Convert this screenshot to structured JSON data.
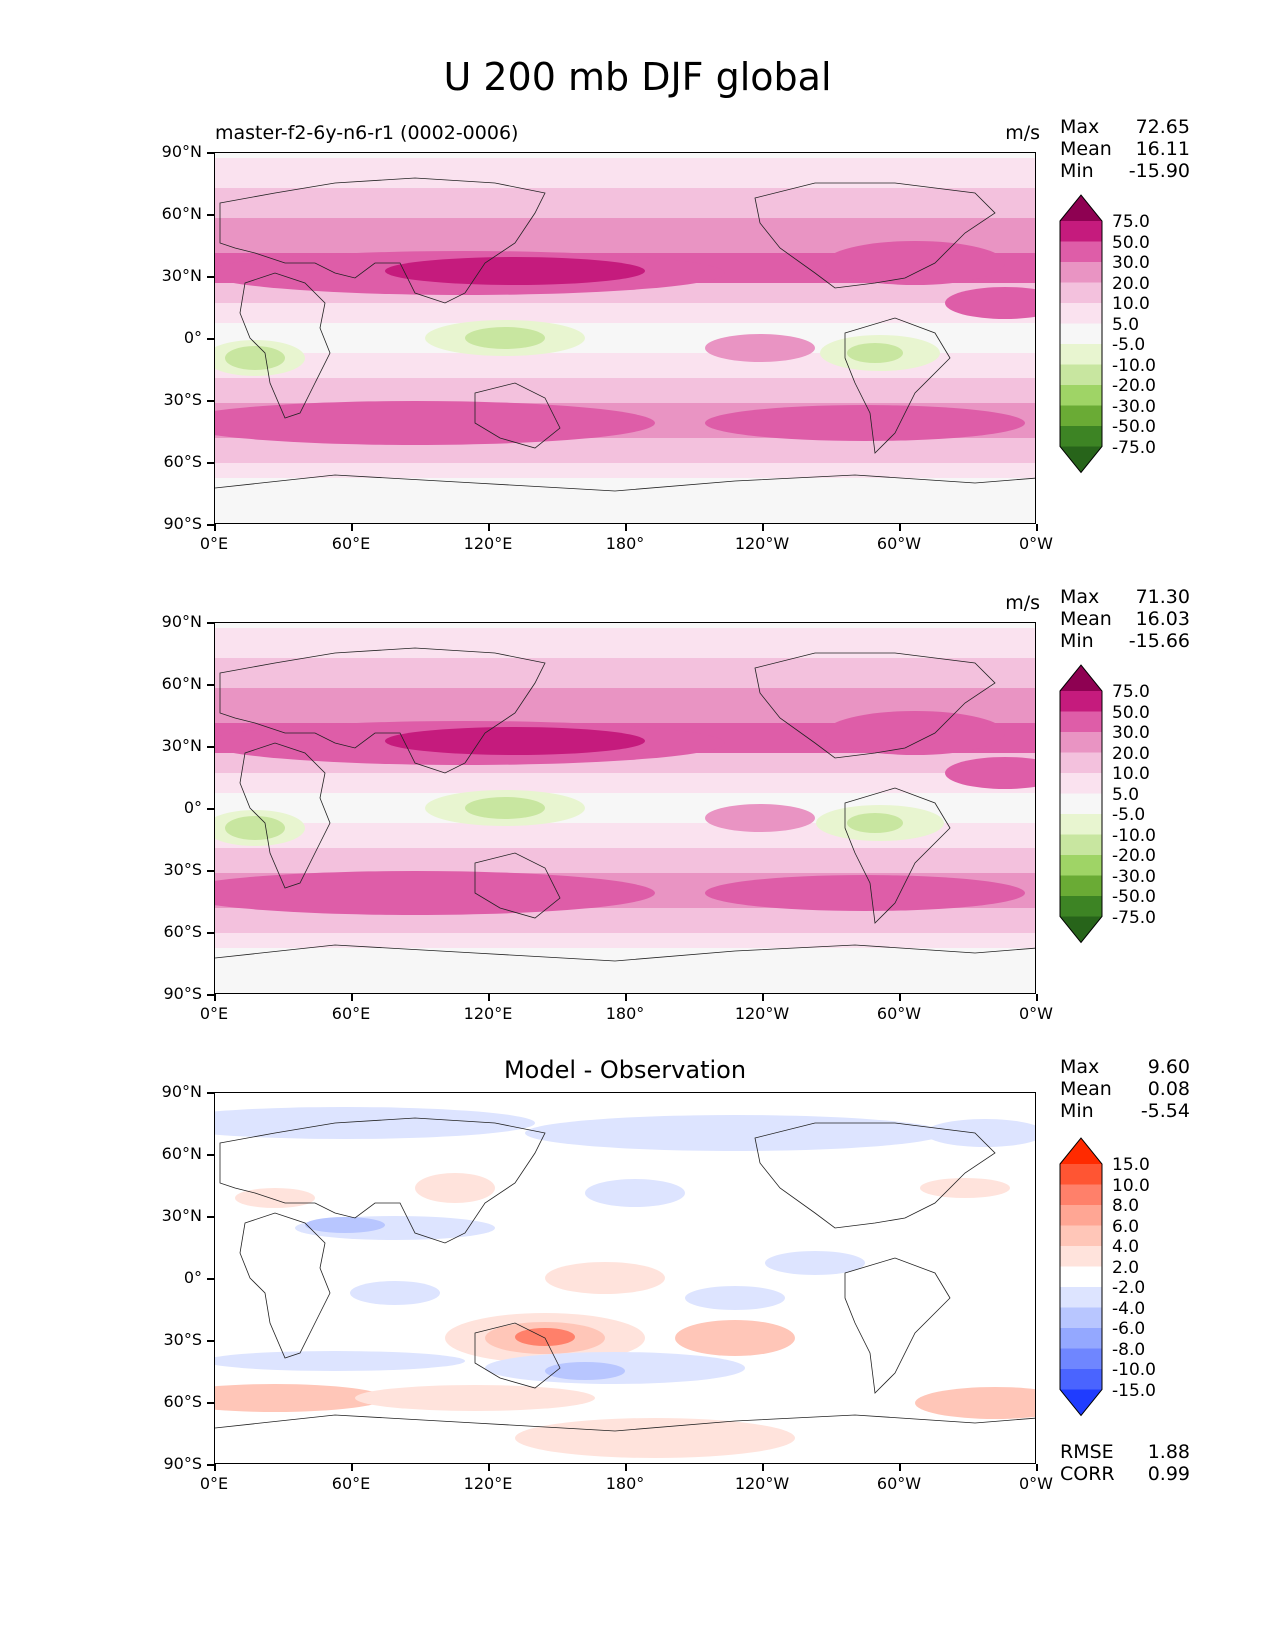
{
  "title": "U 200 mb DJF global",
  "yticks": [
    "90°N",
    "60°N",
    "30°N",
    "0°",
    "30°S",
    "60°S",
    "90°S"
  ],
  "xticks": [
    "0°E",
    "60°E",
    "120°E",
    "180°",
    "120°W",
    "60°W",
    "0°W"
  ],
  "panels": [
    {
      "title_left": "master-f2-6y-n6-r1 (0002-0006)",
      "title_center": "",
      "units": "m/s",
      "stats": {
        "max_label": "Max",
        "max": "72.65",
        "mean_label": "Mean",
        "mean": "16.11",
        "min_label": "Min",
        "min": "-15.90"
      }
    },
    {
      "title_left": "",
      "title_center": "",
      "units": "m/s",
      "stats": {
        "max_label": "Max",
        "max": "71.30",
        "mean_label": "Mean",
        "mean": "16.03",
        "min_label": "Min",
        "min": "-15.66"
      }
    },
    {
      "title_left": "",
      "title_center": "Model - Observation",
      "units": "",
      "stats": {
        "max_label": "Max",
        "max": "9.60",
        "mean_label": "Mean",
        "mean": "0.08",
        "min_label": "Min",
        "min": "-5.54"
      },
      "footer": {
        "rmse_label": "RMSE",
        "rmse": "1.88",
        "corr_label": "CORR",
        "corr": "0.99"
      }
    }
  ],
  "colorbar_main": {
    "labels": [
      "75.0",
      "50.0",
      "30.0",
      "20.0",
      "10.0",
      "5.0",
      "-5.0",
      "-10.0",
      "-20.0",
      "-30.0",
      "-50.0",
      "-75.0"
    ],
    "colors": [
      "#8e0152",
      "#c51b7d",
      "#de5da8",
      "#e994c3",
      "#f3c1dd",
      "#fae2ef",
      "#f7f7f7",
      "#e8f5d0",
      "#c8e6a0",
      "#9fd466",
      "#6aab35",
      "#3d8424",
      "#27641a"
    ]
  },
  "colorbar_diff": {
    "labels": [
      "15.0",
      "10.0",
      "8.0",
      "6.0",
      "4.0",
      "2.0",
      "-2.0",
      "-4.0",
      "-6.0",
      "-8.0",
      "-10.0",
      "-15.0"
    ],
    "colors": [
      "#ff2a00",
      "#ff5533",
      "#ff806a",
      "#ffa694",
      "#ffc6b8",
      "#ffe3dc",
      "#ffffff",
      "#dde4ff",
      "#b8c6ff",
      "#94a8ff",
      "#6f86ff",
      "#4a64ff",
      "#1f3cff"
    ]
  }
}
